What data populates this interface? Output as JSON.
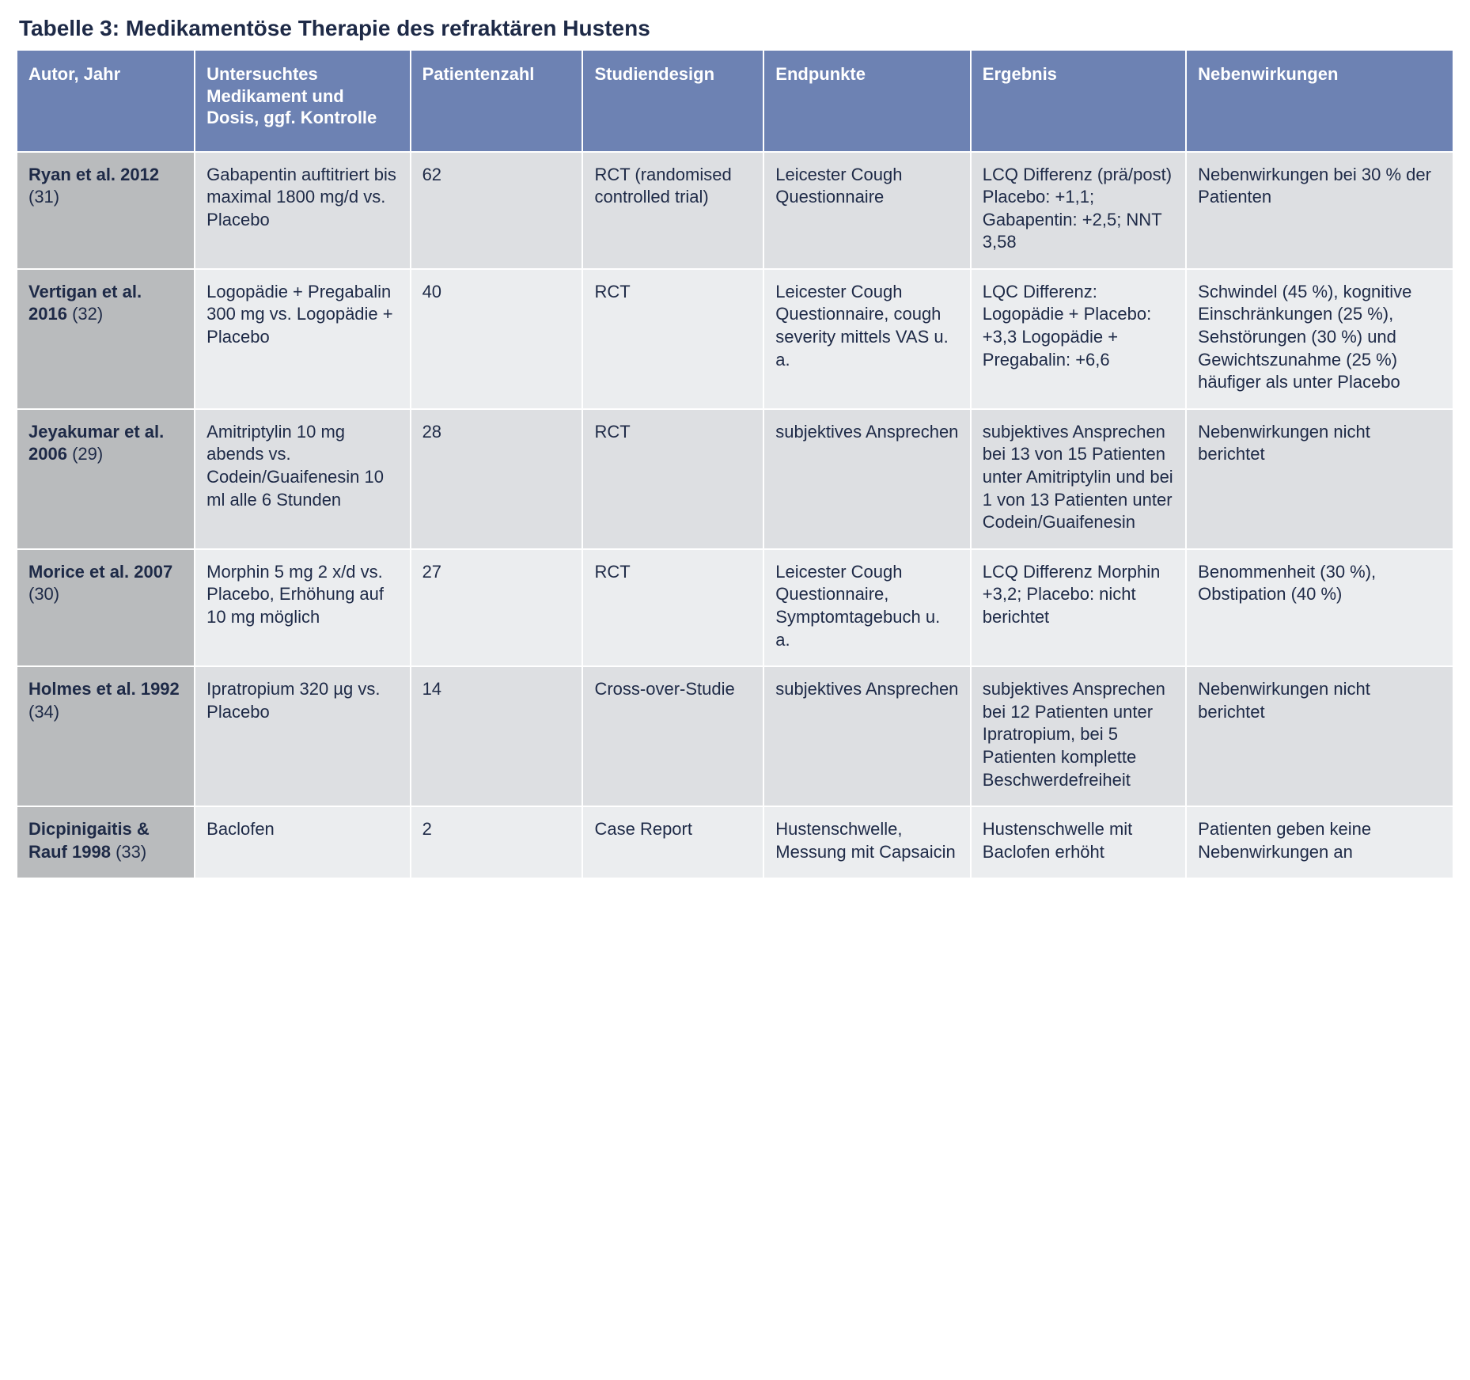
{
  "title": "Tabelle 3: Medikamentöse Therapie des refraktären Hustens",
  "columns": [
    "Autor, Jahr",
    "Untersuchtes Medikament und Dosis, ggf. Kontrolle",
    "Patientenzahl",
    "Studien­design",
    "Endpunkte",
    "Ergebnis",
    "Nebenwirkungen"
  ],
  "rows": [
    {
      "author_name": "Ryan et al. 2012",
      "author_ref": "(31)",
      "medikament": "Gabapentin auftitriert bis maximal 1800 mg/d vs. Placebo",
      "patienten": "62",
      "design": "RCT (randomised controlled trial)",
      "endpunkte": "Leicester Cough Questionnaire",
      "ergebnis": "LCQ Differenz (prä/post) Placebo: +1,1; Gabapentin: +2,5; NNT 3,58",
      "neben": "Nebenwirkungen bei 30 % der Patienten"
    },
    {
      "author_name": "Vertigan et al. 2016",
      "author_ref": "(32)",
      "medikament": "Logopädie + Pregabalin 300 mg vs. Logopädie + Placebo",
      "patienten": "40",
      "design": "RCT",
      "endpunkte": "Leicester Cough Questionnaire, cough severity mittels VAS u. a.",
      "ergebnis": "LQC Differenz: Logopädie + Placebo: +3,3 Logopädie + Pregabalin: +6,6",
      "neben": "Schwindel (45 %), kognitive Einschränkungen (25 %), Sehstörungen (30 %) und Gewichtszunahme (25 %) häufiger als unter Placebo"
    },
    {
      "author_name": "Jeyakumar et al. 2006",
      "author_ref": "(29)",
      "medikament": "Amitriptylin 10 mg abends vs. Codein/Guaifenesin 10 ml alle 6 Stunden",
      "patienten": "28",
      "design": "RCT",
      "endpunkte": "subjektives Ansprechen",
      "ergebnis": "subjektives Ansprechen bei 13 von 15 Patienten unter Amitriptylin und bei 1 von 13 Patienten unter Codein/Guaifenesin",
      "neben": "Nebenwirkungen nicht berichtet"
    },
    {
      "author_name": "Morice et al. 2007",
      "author_ref": "(30)",
      "medikament": "Morphin 5 mg 2 x/d vs. Placebo, Erhöhung auf 10 mg möglich",
      "patienten": "27",
      "design": "RCT",
      "endpunkte": "Leicester Cough Questionnaire, Symptomtagebuch u. a.",
      "ergebnis": "LCQ Differenz Morphin +3,2; Placebo: nicht berichtet",
      "neben": "Benommenheit (30 %), Obstipation (40 %)"
    },
    {
      "author_name": "Holmes et al. 1992",
      "author_ref": "(34)",
      "medikament": "Ipratropium 320 µg vs. Placebo",
      "patienten": "14",
      "design": "Cross-over-Studie",
      "endpunkte": "subjektives Ansprechen",
      "ergebnis": "subjektives Ansprechen bei 12 Patienten unter Ipratropium, bei 5 Patienten komplette Beschwerdefreiheit",
      "neben": "Nebenwirkungen nicht berichtet"
    },
    {
      "author_name": "Dicpinigaitis & Rauf 1998",
      "author_ref": "(33)",
      "medikament": "Baclofen",
      "patienten": "2",
      "design": "Case Report",
      "endpunkte": "Hustenschwelle, Messung mit Capsaicin",
      "ergebnis": "Hustenschwelle mit Baclofen erhöht",
      "neben": "Patienten geben keine Nebenwirkungen an"
    }
  ],
  "style": {
    "type": "table",
    "header_bg": "#6d82b3",
    "header_fg": "#ffffff",
    "row_odd_bg": "#dddfe2",
    "row_even_bg": "#ebedef",
    "author_col_bg": "#b9bbbd",
    "border_color": "#ffffff",
    "text_color": "#1e2a47",
    "font_family": "Segoe UI / Helvetica Neue",
    "title_fontsize_pt": 21,
    "body_fontsize_pt": 16,
    "column_widths_pct": [
      12.4,
      15,
      12,
      12.6,
      14.4,
      15,
      18.6
    ]
  }
}
